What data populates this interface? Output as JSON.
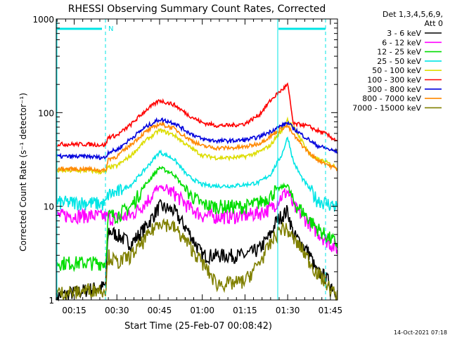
{
  "chart_data": {
    "type": "line",
    "title": "RHESSI Observing Summary Count Rates, Corrected",
    "xlabel": "Start Time (25-Feb-07 00:08:42)",
    "ylabel": "Corrected Count Rate (s⁻¹ detector⁻¹)",
    "y_scale": "log",
    "ylim": [
      1,
      1000
    ],
    "x_unit": "minutes after 00:00 UT",
    "xlim": [
      8.7,
      107.5
    ],
    "x_ticks": [
      {
        "value": 15,
        "label": "00:15"
      },
      {
        "value": 30,
        "label": "00:30"
      },
      {
        "value": 45,
        "label": "00:45"
      },
      {
        "value": 60,
        "label": "01:00"
      },
      {
        "value": 75,
        "label": "01:15"
      },
      {
        "value": 90,
        "label": "01:30"
      },
      {
        "value": 105,
        "label": "01:45"
      }
    ],
    "y_ticks": [
      {
        "value": 1,
        "label": "1"
      },
      {
        "value": 10,
        "label": "10"
      },
      {
        "value": 100,
        "label": "100"
      },
      {
        "value": 1000,
        "label": "1000"
      }
    ],
    "legend_header": [
      "Det 1,3,4,5,6,9,",
      "Att 0"
    ],
    "legend_position": "right",
    "series": [
      {
        "name": "3 - 6 keV",
        "color": "#000000",
        "x": [
          8.7,
          15,
          20,
          26,
          27,
          30,
          35,
          40,
          45,
          50,
          55,
          60,
          65,
          70,
          75,
          80,
          84,
          86,
          88,
          90,
          92,
          95,
          98,
          100,
          103,
          105,
          107.5
        ],
        "y": [
          1.1,
          1.2,
          1.3,
          1.4,
          5.5,
          5,
          4,
          6,
          10,
          9,
          5.5,
          3,
          3,
          3,
          3,
          3.5,
          5,
          7,
          8,
          9,
          5,
          4,
          3,
          2,
          1.8,
          1.5,
          1.2
        ]
      },
      {
        "name": "6 - 12 keV",
        "color": "#ff00ff",
        "x": [
          8.7,
          15,
          20,
          26,
          27,
          30,
          35,
          40,
          45,
          50,
          55,
          60,
          65,
          70,
          75,
          80,
          84,
          86,
          88,
          90,
          92,
          95,
          98,
          100,
          103,
          105,
          107.5
        ],
        "y": [
          8,
          8,
          8,
          7.8,
          7.5,
          7.5,
          8,
          11,
          16,
          14,
          10,
          8,
          7.8,
          7.8,
          8,
          8.5,
          9.5,
          11,
          13,
          14.5,
          10,
          8,
          6.5,
          5.5,
          4.5,
          4,
          3.5
        ]
      },
      {
        "name": "12 - 25 keV",
        "color": "#00dd00",
        "x": [
          8.7,
          15,
          20,
          26,
          27,
          30,
          35,
          40,
          45,
          50,
          55,
          60,
          65,
          70,
          75,
          80,
          84,
          86,
          88,
          90,
          92,
          95,
          98,
          100,
          103,
          105,
          107.5
        ],
        "y": [
          2.5,
          2.5,
          2.5,
          2.5,
          8,
          8,
          10,
          17,
          26,
          22,
          14,
          10.5,
          10,
          10,
          10,
          11,
          13,
          15,
          16,
          17,
          11,
          9,
          7,
          6,
          5,
          4.5,
          4
        ]
      },
      {
        "name": "25 - 50 keV",
        "color": "#00e5e5",
        "x": [
          8.7,
          15,
          20,
          26,
          27,
          30,
          35,
          40,
          45,
          50,
          55,
          60,
          65,
          70,
          75,
          80,
          84,
          86,
          88,
          90,
          92,
          95,
          98,
          100,
          103,
          105,
          107.5
        ],
        "y": [
          11,
          11,
          11,
          10.5,
          13.5,
          14,
          17,
          25,
          38,
          32,
          21,
          17,
          16.5,
          16.5,
          17,
          18,
          22,
          28,
          36,
          55,
          30,
          20,
          15,
          12,
          11,
          10.5,
          10
        ]
      },
      {
        "name": "50 - 100 keV",
        "color": "#dddd00",
        "x": [
          8.7,
          15,
          20,
          26,
          27,
          30,
          35,
          40,
          45,
          50,
          55,
          60,
          65,
          70,
          75,
          80,
          84,
          86,
          88,
          90,
          92,
          95,
          98,
          100,
          103,
          105,
          107.5
        ],
        "y": [
          24,
          24,
          24,
          23,
          26,
          27,
          35,
          50,
          65,
          58,
          44,
          35,
          33,
          33,
          34,
          38,
          45,
          55,
          65,
          85,
          70,
          50,
          35,
          32,
          30,
          28,
          26
        ]
      },
      {
        "name": "100 - 300 keV",
        "color": "#ff0000",
        "x": [
          8.7,
          15,
          20,
          26,
          27,
          30,
          35,
          40,
          45,
          50,
          55,
          60,
          65,
          70,
          75,
          80,
          84,
          86,
          88,
          90,
          92,
          95,
          98,
          100,
          103,
          105,
          107.5
        ],
        "y": [
          46,
          46,
          46,
          45,
          55,
          57,
          75,
          105,
          135,
          122,
          95,
          78,
          73,
          73,
          76,
          95,
          135,
          155,
          175,
          200,
          75,
          75,
          70,
          65,
          60,
          55,
          50
        ]
      },
      {
        "name": "300 - 800 keV",
        "color": "#0000dd",
        "x": [
          8.7,
          15,
          20,
          26,
          27,
          30,
          35,
          40,
          45,
          50,
          55,
          60,
          65,
          70,
          75,
          80,
          84,
          86,
          88,
          90,
          92,
          95,
          98,
          100,
          103,
          105,
          107.5
        ],
        "y": [
          34,
          34,
          34,
          33,
          38,
          40,
          53,
          70,
          85,
          78,
          62,
          52,
          50,
          50,
          51,
          55,
          63,
          68,
          73,
          78,
          68,
          58,
          50,
          45,
          42,
          40,
          38
        ]
      },
      {
        "name": "800 - 7000 keV",
        "color": "#ff8800",
        "x": [
          8.7,
          15,
          20,
          26,
          27,
          30,
          35,
          40,
          45,
          50,
          55,
          60,
          65,
          70,
          75,
          80,
          84,
          86,
          88,
          90,
          92,
          95,
          98,
          100,
          103,
          105,
          107.5
        ],
        "y": [
          25,
          25,
          25,
          24,
          32,
          34,
          46,
          62,
          76,
          68,
          53,
          44,
          42,
          42,
          43,
          47,
          56,
          62,
          68,
          72,
          58,
          45,
          36,
          32,
          29,
          27,
          25
        ]
      },
      {
        "name": "7000 - 15000 keV",
        "color": "#808000",
        "x": [
          8.7,
          15,
          20,
          26,
          27,
          30,
          35,
          40,
          45,
          50,
          55,
          60,
          65,
          70,
          75,
          80,
          84,
          86,
          88,
          90,
          92,
          95,
          98,
          100,
          103,
          105,
          107.5
        ],
        "y": [
          1.2,
          1.2,
          1.3,
          1.3,
          3,
          2.5,
          3,
          4.5,
          7,
          6,
          4,
          2.5,
          1.5,
          1.5,
          1.6,
          2.5,
          4,
          5,
          6,
          5.5,
          4.5,
          3.5,
          2.5,
          2,
          1.6,
          1.3,
          1.1
        ]
      }
    ],
    "annotations": [
      {
        "text": "N",
        "color": "#00e5e5"
      }
    ],
    "timestamp": "14-Oct-2021 07:18"
  }
}
